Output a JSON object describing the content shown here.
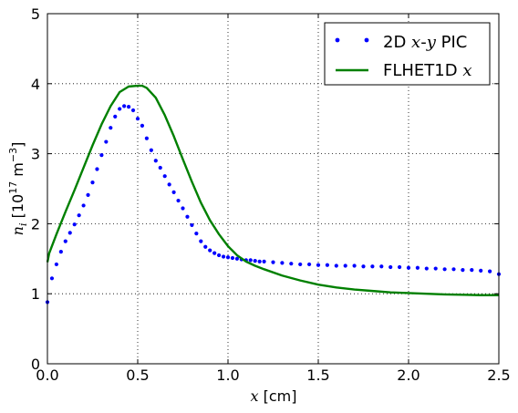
{
  "chart_data": {
    "type": "line",
    "xlabel": "x [cm]",
    "ylabel": "n_i [10^17 m^-3]",
    "xlim": [
      0.0,
      2.5
    ],
    "ylim": [
      0,
      5
    ],
    "xticks": [
      "0.0",
      "0.5",
      "1.0",
      "1.5",
      "2.0",
      "2.5"
    ],
    "yticks": [
      "0",
      "1",
      "2",
      "3",
      "4",
      "5"
    ],
    "grid": true,
    "legend_position": "top-right",
    "series": [
      {
        "name": "2D x-y PIC",
        "style": "dotted-markers",
        "color": "#0000ff",
        "x": [
          0.0,
          0.025,
          0.05,
          0.075,
          0.1,
          0.125,
          0.15,
          0.175,
          0.2,
          0.225,
          0.25,
          0.275,
          0.3,
          0.325,
          0.35,
          0.375,
          0.4,
          0.425,
          0.45,
          0.475,
          0.5,
          0.525,
          0.55,
          0.575,
          0.6,
          0.625,
          0.65,
          0.675,
          0.7,
          0.725,
          0.75,
          0.775,
          0.8,
          0.825,
          0.85,
          0.875,
          0.9,
          0.925,
          0.95,
          0.975,
          1.0,
          1.025,
          1.05,
          1.075,
          1.1,
          1.125,
          1.15,
          1.175,
          1.2,
          1.25,
          1.3,
          1.35,
          1.4,
          1.45,
          1.5,
          1.55,
          1.6,
          1.65,
          1.7,
          1.75,
          1.8,
          1.85,
          1.9,
          1.95,
          2.0,
          2.05,
          2.1,
          2.15,
          2.2,
          2.25,
          2.3,
          2.35,
          2.4,
          2.45,
          2.5
        ],
        "y": [
          0.88,
          1.22,
          1.42,
          1.6,
          1.75,
          1.87,
          1.99,
          2.12,
          2.26,
          2.41,
          2.59,
          2.78,
          2.98,
          3.17,
          3.37,
          3.53,
          3.64,
          3.68,
          3.67,
          3.62,
          3.5,
          3.4,
          3.22,
          3.05,
          2.9,
          2.8,
          2.68,
          2.56,
          2.45,
          2.33,
          2.22,
          2.1,
          1.98,
          1.86,
          1.75,
          1.67,
          1.62,
          1.58,
          1.55,
          1.53,
          1.52,
          1.51,
          1.5,
          1.49,
          1.48,
          1.48,
          1.47,
          1.46,
          1.46,
          1.45,
          1.44,
          1.43,
          1.42,
          1.42,
          1.41,
          1.41,
          1.4,
          1.4,
          1.4,
          1.39,
          1.39,
          1.39,
          1.38,
          1.38,
          1.37,
          1.37,
          1.36,
          1.36,
          1.35,
          1.35,
          1.34,
          1.34,
          1.33,
          1.32,
          1.28
        ]
      },
      {
        "name": "FLHET1D x",
        "style": "solid",
        "color": "#008000",
        "x": [
          0.0,
          0.01,
          0.05,
          0.1,
          0.15,
          0.2,
          0.25,
          0.3,
          0.35,
          0.4,
          0.45,
          0.5,
          0.525,
          0.55,
          0.6,
          0.65,
          0.7,
          0.75,
          0.8,
          0.85,
          0.9,
          0.95,
          1.0,
          1.05,
          1.1,
          1.15,
          1.2,
          1.3,
          1.4,
          1.5,
          1.6,
          1.7,
          1.8,
          1.9,
          2.0,
          2.1,
          2.2,
          2.3,
          2.4,
          2.5
        ],
        "y": [
          1.45,
          1.58,
          1.85,
          2.17,
          2.48,
          2.8,
          3.12,
          3.42,
          3.68,
          3.88,
          3.96,
          3.97,
          3.97,
          3.94,
          3.8,
          3.55,
          3.25,
          2.92,
          2.6,
          2.3,
          2.05,
          1.85,
          1.68,
          1.55,
          1.46,
          1.4,
          1.35,
          1.26,
          1.19,
          1.13,
          1.09,
          1.06,
          1.04,
          1.02,
          1.01,
          1.0,
          0.99,
          0.985,
          0.98,
          0.98
        ]
      }
    ]
  }
}
